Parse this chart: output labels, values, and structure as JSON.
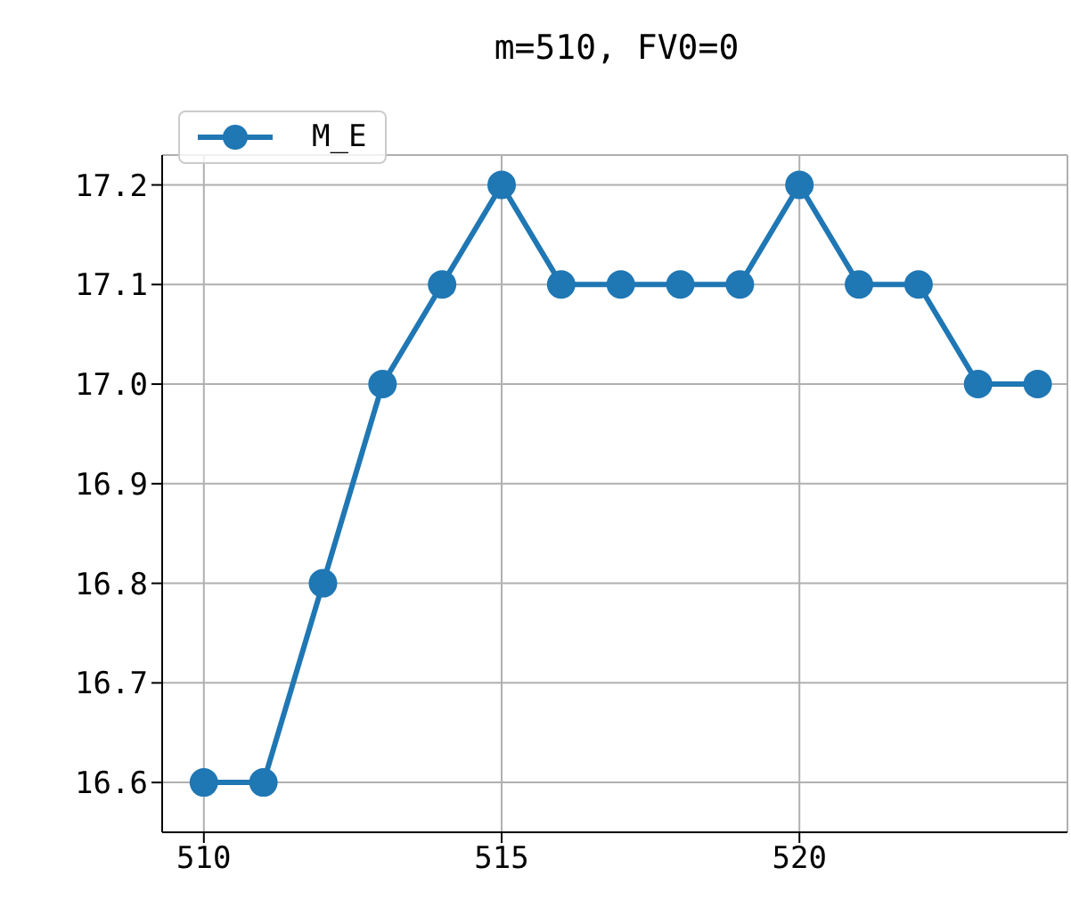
{
  "chart_data": {
    "type": "line",
    "title": "m=510, FV0=0",
    "x": [
      510,
      511,
      512,
      513,
      514,
      515,
      516,
      517,
      518,
      519,
      520,
      521,
      522,
      523,
      524
    ],
    "series": [
      {
        "name": "M_E",
        "color": "#1f77b4",
        "values": [
          16.6,
          16.6,
          16.8,
          17.0,
          17.1,
          17.2,
          17.1,
          17.1,
          17.1,
          17.1,
          17.2,
          17.1,
          17.1,
          17.0,
          17.0
        ]
      }
    ],
    "xlim": [
      509.3,
      524.5
    ],
    "xticks": [
      510,
      515,
      520
    ],
    "ylim": [
      16.55,
      17.23
    ],
    "yticks": [
      {
        "value": 16.6,
        "label": "16.6"
      },
      {
        "value": 16.7,
        "label": "16.7"
      },
      {
        "value": 16.8,
        "label": "16.8"
      },
      {
        "value": 16.9,
        "label": "16.9"
      },
      {
        "value": 17.0,
        "label": "17.0"
      },
      {
        "value": 17.1,
        "label": "17.1"
      },
      {
        "value": 17.2,
        "label": "17.2"
      }
    ],
    "grid": true,
    "legend": "top left",
    "marker": "circle",
    "line_style": "solid"
  }
}
